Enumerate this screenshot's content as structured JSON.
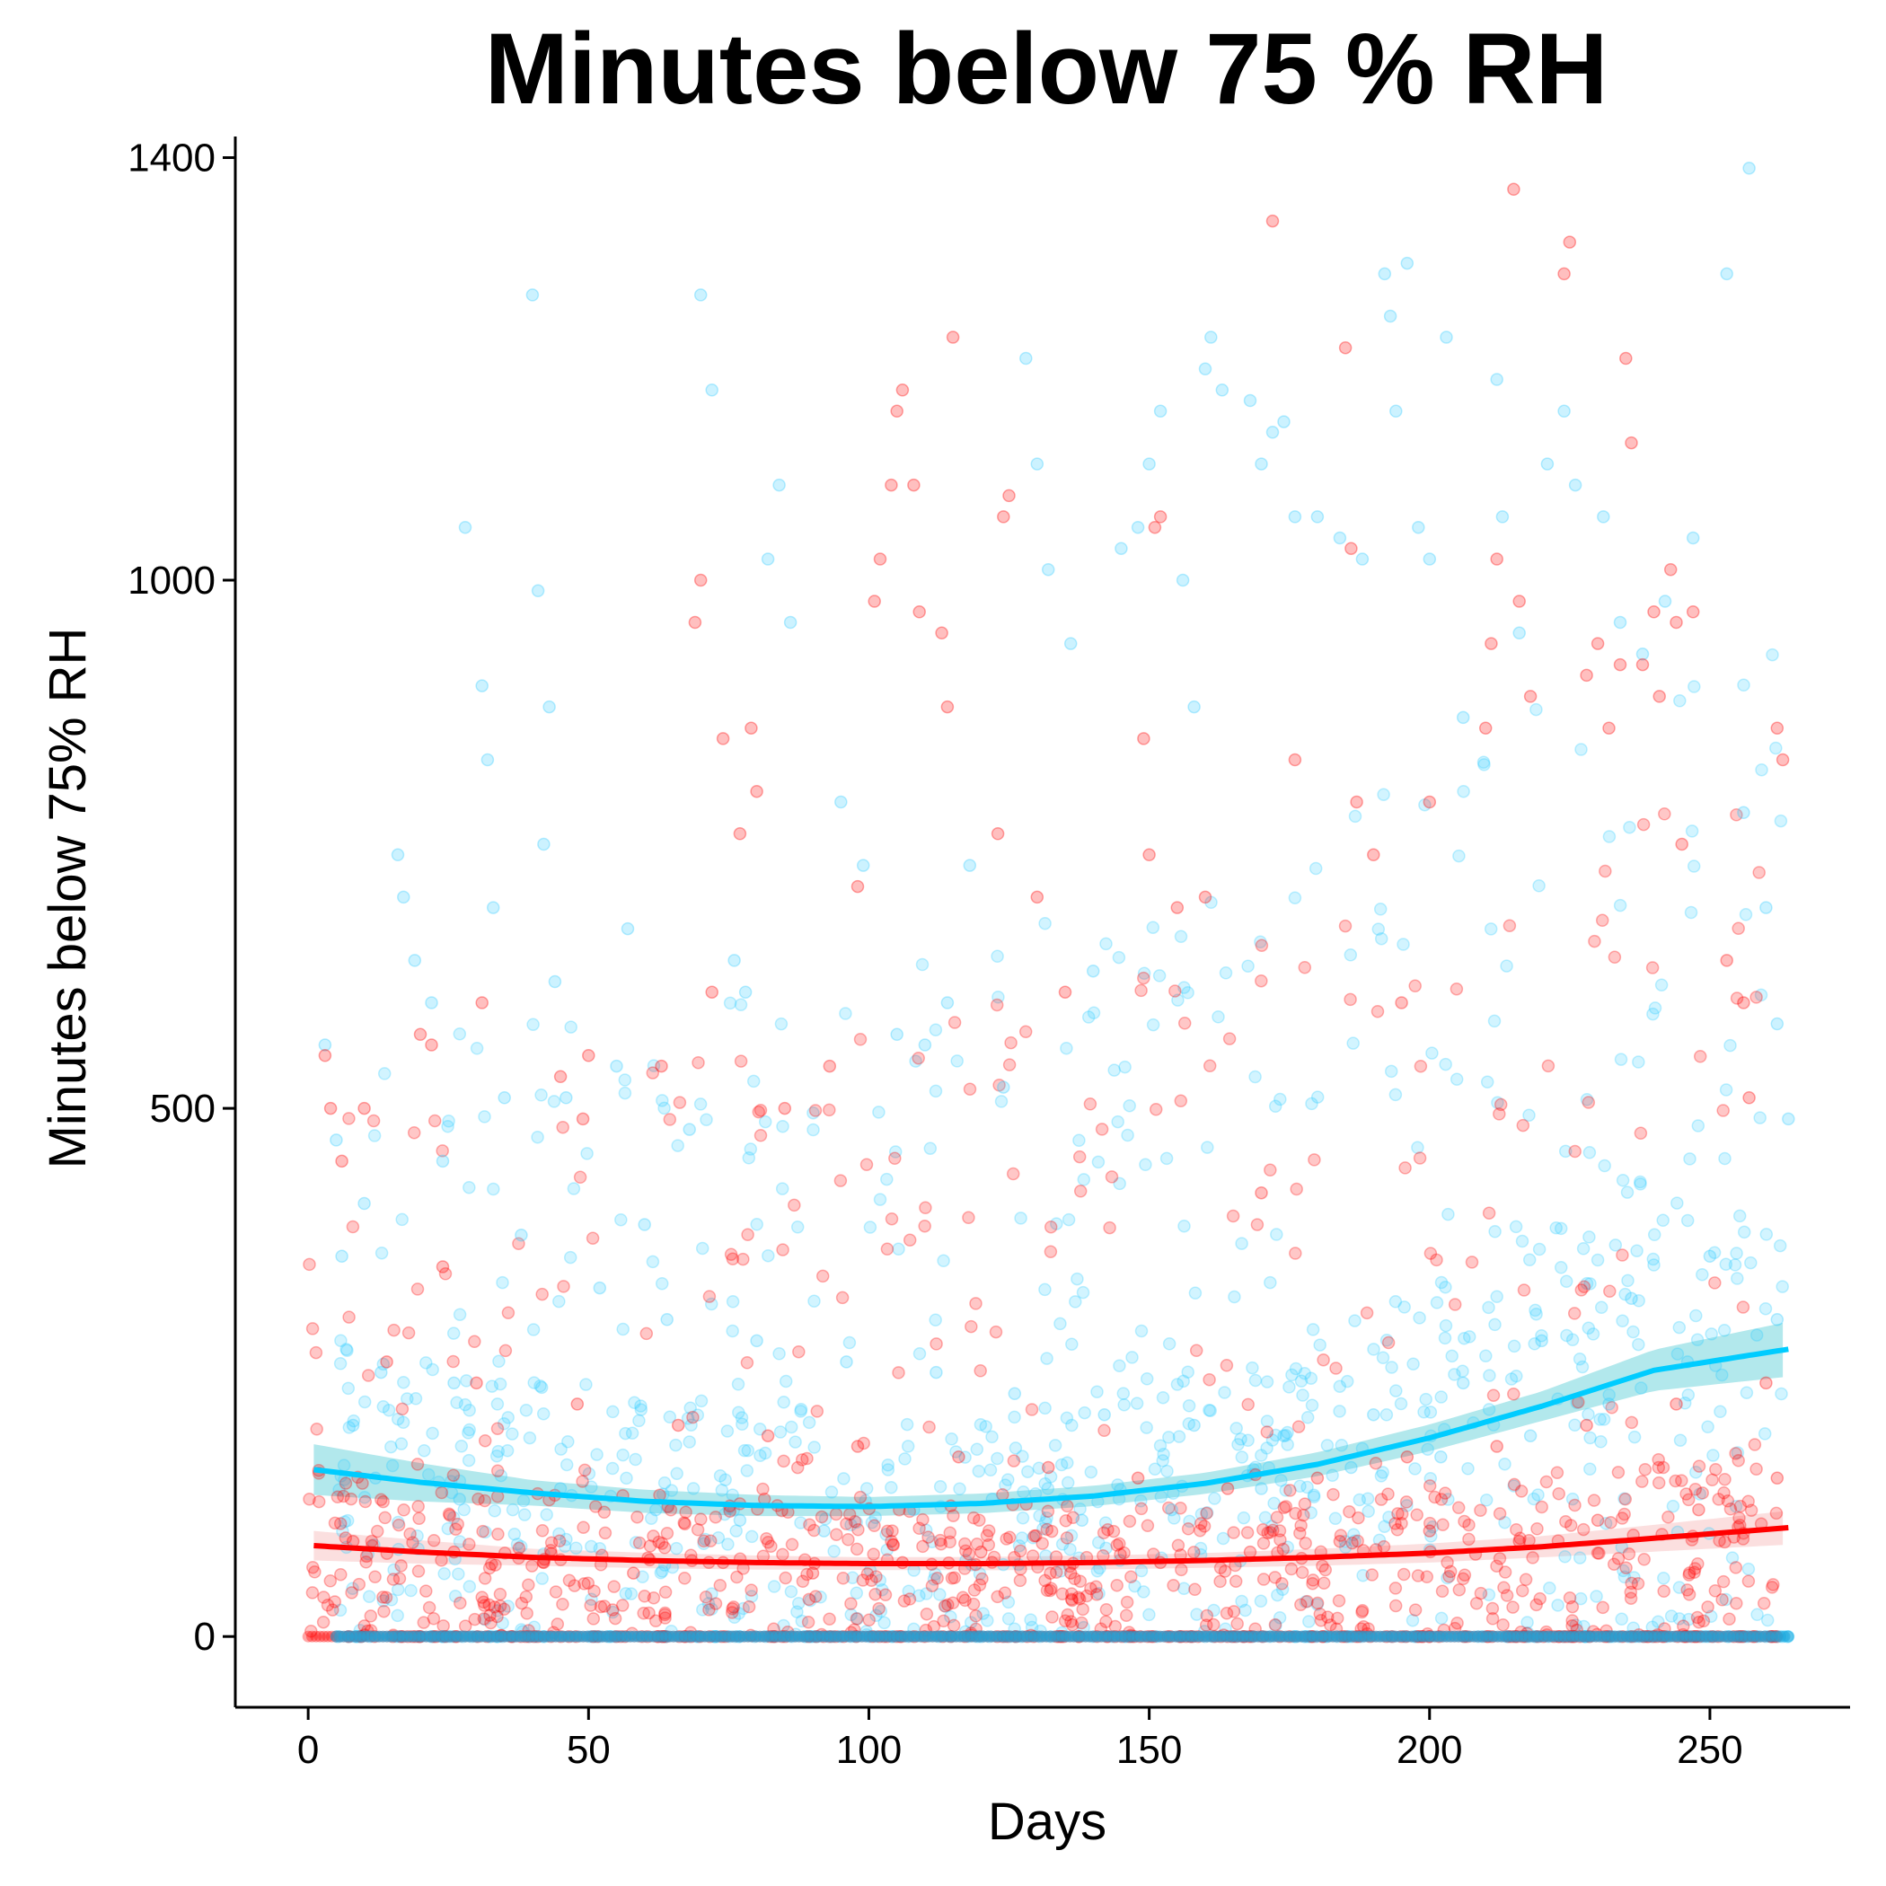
{
  "chart_data": {
    "type": "scatter",
    "title": "Minutes below 75 % RH",
    "xlabel": "Days",
    "ylabel": "Minutes below 75% RH",
    "xlim": [
      -13,
      275
    ],
    "ylim": [
      -67,
      1420
    ],
    "xticks": [
      0,
      50,
      100,
      150,
      200,
      250
    ],
    "yticks": [
      0,
      500,
      1000,
      1400
    ],
    "grid": false,
    "legend": "none",
    "colors": {
      "series_a": "#00CCFF",
      "series_a_point": "#33CCFF",
      "series_a_zero": "#1EA7DC",
      "series_b": "#FF0000",
      "ribbon_a": "#7FD8E0",
      "ribbon_b": "#F7C5C5"
    },
    "point_count_per_series": 1000,
    "series": [
      {
        "id": "a",
        "color": "#33CCFF",
        "points": [
          [
            3,
            560
          ],
          [
            5,
            470
          ],
          [
            6,
            360
          ],
          [
            8,
            200
          ],
          [
            10,
            410
          ],
          [
            13,
            250
          ],
          [
            16,
            740
          ],
          [
            17,
            700
          ],
          [
            19,
            640
          ],
          [
            22,
            600
          ],
          [
            26,
            240
          ],
          [
            28,
            1050
          ],
          [
            31,
            900
          ],
          [
            32,
            830
          ],
          [
            33,
            690
          ],
          [
            35,
            510
          ],
          [
            40,
            1270
          ],
          [
            41,
            990
          ],
          [
            42,
            750
          ],
          [
            43,
            880
          ],
          [
            44,
            620
          ],
          [
            46,
            510
          ],
          [
            55,
            540
          ],
          [
            57,
            670
          ],
          [
            60,
            390
          ],
          [
            68,
            480
          ],
          [
            70,
            1270
          ],
          [
            72,
            1180
          ],
          [
            76,
            640
          ],
          [
            78,
            610
          ],
          [
            82,
            1020
          ],
          [
            84,
            1090
          ],
          [
            86,
            960
          ],
          [
            95,
            790
          ],
          [
            99,
            730
          ],
          [
            105,
            570
          ],
          [
            110,
            560
          ],
          [
            114,
            600
          ],
          [
            118,
            730
          ],
          [
            124,
            520
          ],
          [
            128,
            1210
          ],
          [
            130,
            1110
          ],
          [
            132,
            1010
          ],
          [
            136,
            940
          ],
          [
            140,
            630
          ],
          [
            145,
            1030
          ],
          [
            148,
            1050
          ],
          [
            150,
            1110
          ],
          [
            152,
            1160
          ],
          [
            156,
            1000
          ],
          [
            158,
            880
          ],
          [
            160,
            1200
          ],
          [
            161,
            1230
          ],
          [
            163,
            1180
          ],
          [
            168,
            1170
          ],
          [
            170,
            1110
          ],
          [
            172,
            1140
          ],
          [
            174,
            1150
          ],
          [
            176,
            1060
          ],
          [
            180,
            1060
          ],
          [
            184,
            1040
          ],
          [
            188,
            1020
          ],
          [
            192,
            1290
          ],
          [
            193,
            1250
          ],
          [
            194,
            1160
          ],
          [
            196,
            1300
          ],
          [
            198,
            1050
          ],
          [
            200,
            1020
          ],
          [
            203,
            1230
          ],
          [
            206,
            870
          ],
          [
            212,
            1190
          ],
          [
            213,
            1060
          ],
          [
            216,
            950
          ],
          [
            221,
            1110
          ],
          [
            224,
            1160
          ],
          [
            226,
            1090
          ],
          [
            231,
            1060
          ],
          [
            234,
            960
          ],
          [
            238,
            930
          ],
          [
            242,
            980
          ],
          [
            247,
            1040
          ],
          [
            253,
            1290
          ],
          [
            256,
            780
          ],
          [
            257,
            1390
          ],
          [
            260,
            690
          ],
          [
            262,
            580
          ],
          [
            264,
            490
          ],
          [
            24,
            450
          ],
          [
            38,
            380
          ],
          [
            52,
            330
          ],
          [
            64,
            300
          ],
          [
            80,
            280
          ],
          [
            96,
            260
          ],
          [
            112,
            250
          ],
          [
            126,
            230
          ],
          [
            142,
            210
          ],
          [
            158,
            200
          ],
          [
            174,
            190
          ],
          [
            190,
            210
          ],
          [
            206,
            240
          ],
          [
            220,
            280
          ],
          [
            236,
            320
          ],
          [
            250,
            360
          ],
          [
            12,
            150
          ],
          [
            27,
            130
          ],
          [
            45,
            140
          ],
          [
            62,
            120
          ],
          [
            77,
            110
          ],
          [
            92,
            100
          ],
          [
            108,
            120
          ],
          [
            122,
            130
          ],
          [
            138,
            110
          ],
          [
            154,
            120
          ],
          [
            170,
            140
          ],
          [
            186,
            160
          ],
          [
            202,
            170
          ],
          [
            218,
            190
          ],
          [
            232,
            220
          ],
          [
            246,
            260
          ],
          [
            262,
            300
          ]
        ],
        "trend": [
          [
            1,
            158
          ],
          [
            20,
            146
          ],
          [
            40,
            136
          ],
          [
            60,
            128
          ],
          [
            80,
            124
          ],
          [
            100,
            123
          ],
          [
            120,
            126
          ],
          [
            140,
            133
          ],
          [
            160,
            145
          ],
          [
            180,
            163
          ],
          [
            200,
            188
          ],
          [
            220,
            218
          ],
          [
            240,
            252
          ],
          [
            264,
            272
          ]
        ],
        "band_halfwidth": [
          [
            1,
            24
          ],
          [
            40,
            12
          ],
          [
            100,
            9
          ],
          [
            160,
            10
          ],
          [
            220,
            14
          ],
          [
            264,
            26
          ]
        ],
        "zero_range": [
          5,
          264
        ]
      },
      {
        "id": "b",
        "color": "#FF0000",
        "points": [
          [
            3,
            550
          ],
          [
            4,
            500
          ],
          [
            6,
            450
          ],
          [
            10,
            500
          ],
          [
            20,
            570
          ],
          [
            22,
            560
          ],
          [
            24,
            350
          ],
          [
            31,
            600
          ],
          [
            45,
            530
          ],
          [
            49,
            490
          ],
          [
            50,
            550
          ],
          [
            63,
            540
          ],
          [
            69,
            960
          ],
          [
            70,
            1000
          ],
          [
            72,
            610
          ],
          [
            74,
            850
          ],
          [
            77,
            760
          ],
          [
            79,
            860
          ],
          [
            80,
            800
          ],
          [
            85,
            500
          ],
          [
            93,
            540
          ],
          [
            98,
            710
          ],
          [
            101,
            980
          ],
          [
            102,
            1020
          ],
          [
            104,
            1090
          ],
          [
            105,
            1160
          ],
          [
            106,
            1180
          ],
          [
            108,
            1090
          ],
          [
            109,
            970
          ],
          [
            113,
            950
          ],
          [
            114,
            880
          ],
          [
            115,
            1230
          ],
          [
            123,
            760
          ],
          [
            124,
            1060
          ],
          [
            125,
            1080
          ],
          [
            130,
            700
          ],
          [
            135,
            610
          ],
          [
            149,
            850
          ],
          [
            150,
            740
          ],
          [
            151,
            1050
          ],
          [
            152,
            1060
          ],
          [
            155,
            690
          ],
          [
            160,
            700
          ],
          [
            170,
            420
          ],
          [
            172,
            1340
          ],
          [
            176,
            830
          ],
          [
            185,
            1220
          ],
          [
            186,
            1030
          ],
          [
            187,
            790
          ],
          [
            190,
            740
          ],
          [
            195,
            600
          ],
          [
            200,
            790
          ],
          [
            210,
            860
          ],
          [
            211,
            940
          ],
          [
            212,
            1020
          ],
          [
            215,
            1370
          ],
          [
            216,
            980
          ],
          [
            218,
            890
          ],
          [
            224,
            1290
          ],
          [
            225,
            1320
          ],
          [
            228,
            910
          ],
          [
            230,
            940
          ],
          [
            232,
            860
          ],
          [
            234,
            920
          ],
          [
            235,
            1210
          ],
          [
            236,
            1130
          ],
          [
            238,
            920
          ],
          [
            240,
            970
          ],
          [
            241,
            890
          ],
          [
            243,
            1010
          ],
          [
            244,
            960
          ],
          [
            245,
            750
          ],
          [
            247,
            970
          ],
          [
            253,
            640
          ],
          [
            256,
            600
          ],
          [
            257,
            510
          ],
          [
            262,
            860
          ],
          [
            263,
            830
          ],
          [
            14,
            260
          ],
          [
            30,
            240
          ],
          [
            48,
            220
          ],
          [
            66,
            200
          ],
          [
            82,
            190
          ],
          [
            98,
            180
          ],
          [
            116,
            170
          ],
          [
            132,
            160
          ],
          [
            148,
            150
          ],
          [
            164,
            140
          ],
          [
            180,
            150
          ],
          [
            196,
            170
          ],
          [
            212,
            180
          ],
          [
            228,
            200
          ],
          [
            244,
            220
          ],
          [
            260,
            240
          ],
          [
            8,
            90
          ],
          [
            26,
            80
          ],
          [
            42,
            70
          ],
          [
            58,
            60
          ],
          [
            74,
            70
          ],
          [
            90,
            60
          ],
          [
            106,
            70
          ],
          [
            120,
            80
          ],
          [
            136,
            60
          ],
          [
            152,
            70
          ],
          [
            168,
            80
          ],
          [
            184,
            90
          ],
          [
            200,
            100
          ],
          [
            216,
            90
          ],
          [
            230,
            110
          ],
          [
            248,
            120
          ],
          [
            262,
            150
          ]
        ],
        "trend": [
          [
            1,
            86
          ],
          [
            20,
            80
          ],
          [
            40,
            75
          ],
          [
            60,
            72
          ],
          [
            80,
            70
          ],
          [
            100,
            69
          ],
          [
            120,
            69
          ],
          [
            140,
            70
          ],
          [
            160,
            72
          ],
          [
            180,
            75
          ],
          [
            200,
            79
          ],
          [
            220,
            85
          ],
          [
            240,
            93
          ],
          [
            264,
            103
          ]
        ],
        "band_halfwidth": [
          [
            1,
            14
          ],
          [
            40,
            8
          ],
          [
            100,
            6
          ],
          [
            160,
            7
          ],
          [
            220,
            10
          ],
          [
            264,
            16
          ]
        ],
        "zero_range": [
          0,
          262
        ]
      }
    ]
  }
}
